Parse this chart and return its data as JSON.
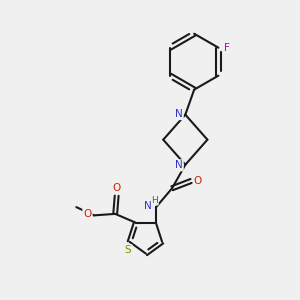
{
  "background_color": "#f0f0f0",
  "bond_color": "#1a1a1a",
  "N_color": "#3333cc",
  "O_color": "#cc2200",
  "S_color": "#888800",
  "F_color": "#cc00aa",
  "line_width": 1.5,
  "dbo": 0.08,
  "fig_width": 3.0,
  "fig_height": 3.0,
  "dpi": 100,
  "xlim": [
    0,
    10
  ],
  "ylim": [
    0,
    10
  ]
}
